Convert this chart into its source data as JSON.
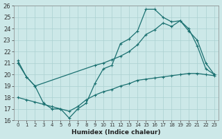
{
  "xlabel": "Humidex (Indice chaleur)",
  "bg_color": "#cce8e8",
  "grid_color": "#aad0d0",
  "line_color": "#1a7070",
  "xlim": [
    -0.5,
    23.5
  ],
  "ylim": [
    16,
    26
  ],
  "xticks": [
    0,
    1,
    2,
    3,
    4,
    5,
    6,
    7,
    8,
    9,
    10,
    11,
    12,
    13,
    14,
    15,
    16,
    17,
    18,
    19,
    20,
    21,
    22,
    23
  ],
  "yticks": [
    16,
    17,
    18,
    19,
    20,
    21,
    22,
    23,
    24,
    25,
    26
  ],
  "line1_x": [
    0,
    1,
    2,
    3,
    4,
    5,
    6,
    7,
    8,
    9,
    10,
    11,
    12,
    13,
    14,
    15,
    16,
    17,
    18,
    19,
    20,
    21,
    22,
    23
  ],
  "line1_y": [
    21.2,
    19.8,
    19.0,
    17.5,
    17.0,
    17.0,
    16.2,
    17.0,
    17.5,
    19.2,
    20.5,
    20.8,
    22.7,
    23.1,
    23.8,
    25.7,
    25.7,
    25.0,
    24.6,
    24.7,
    23.8,
    23.0,
    21.0,
    20.0
  ],
  "line2_x": [
    0,
    1,
    2,
    9,
    10,
    11,
    12,
    13,
    14,
    15,
    16,
    17,
    18,
    19,
    20,
    21,
    22,
    23
  ],
  "line2_y": [
    21.0,
    19.8,
    19.0,
    20.8,
    21.0,
    21.3,
    21.6,
    22.0,
    22.6,
    23.5,
    23.9,
    24.5,
    24.2,
    24.7,
    24.0,
    22.5,
    20.5,
    20.0
  ],
  "line3_x": [
    0,
    1,
    2,
    3,
    4,
    5,
    6,
    7,
    8,
    9,
    10,
    11,
    12,
    13,
    14,
    15,
    16,
    17,
    18,
    19,
    20,
    21,
    22,
    23
  ],
  "line3_y": [
    18.0,
    17.8,
    17.6,
    17.4,
    17.2,
    17.0,
    16.8,
    17.2,
    17.8,
    18.2,
    18.5,
    18.7,
    19.0,
    19.2,
    19.5,
    19.6,
    19.7,
    19.8,
    19.9,
    20.0,
    20.1,
    20.1,
    20.0,
    19.9
  ]
}
